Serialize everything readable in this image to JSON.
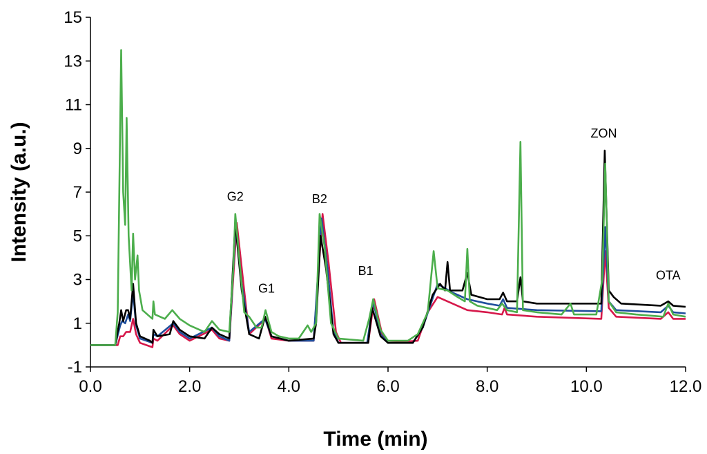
{
  "chart_data": {
    "type": "line",
    "title": "",
    "xlabel": "Time (min)",
    "ylabel": "Intensity (a.u.)",
    "xlim": [
      0,
      12
    ],
    "ylim": [
      -1,
      15
    ],
    "x_ticks": [
      "0.0",
      "2.0",
      "4.0",
      "6.0",
      "8.0",
      "10.0",
      "12.0"
    ],
    "y_ticks": [
      "-1",
      "1",
      "3",
      "5",
      "7",
      "9",
      "11",
      "13",
      "15"
    ],
    "grid": false,
    "legend": "none",
    "annotations": [
      {
        "text": "G2",
        "x": 2.92,
        "y": 6.6
      },
      {
        "text": "G1",
        "x": 3.55,
        "y": 2.4
      },
      {
        "text": "B2",
        "x": 4.62,
        "y": 6.5
      },
      {
        "text": "B1",
        "x": 5.55,
        "y": 3.2
      },
      {
        "text": "ZON",
        "x": 10.35,
        "y": 9.5
      },
      {
        "text": "OTA",
        "x": 11.65,
        "y": 3.0
      }
    ],
    "series": [
      {
        "color": "#d6184a",
        "points": [
          [
            0,
            0
          ],
          [
            0.55,
            0
          ],
          [
            0.6,
            0.4
          ],
          [
            0.66,
            0.4
          ],
          [
            0.72,
            0.6
          ],
          [
            0.8,
            0.6
          ],
          [
            0.86,
            1.2
          ],
          [
            0.92,
            0.5
          ],
          [
            1.0,
            0.1
          ],
          [
            1.25,
            -0.1
          ],
          [
            1.27,
            0.3
          ],
          [
            1.35,
            0.2
          ],
          [
            1.67,
            0.9
          ],
          [
            1.8,
            0.5
          ],
          [
            2.0,
            0.2
          ],
          [
            2.45,
            0.7
          ],
          [
            2.6,
            0.3
          ],
          [
            2.8,
            0.2
          ],
          [
            2.95,
            5.6
          ],
          [
            3.1,
            2.5
          ],
          [
            3.2,
            0.5
          ],
          [
            3.53,
            1.2
          ],
          [
            3.65,
            0.3
          ],
          [
            4.0,
            0.2
          ],
          [
            4.5,
            0.2
          ],
          [
            4.68,
            6.0
          ],
          [
            4.8,
            3.8
          ],
          [
            4.95,
            0.6
          ],
          [
            5.05,
            0.1
          ],
          [
            5.6,
            0.1
          ],
          [
            5.72,
            2.1
          ],
          [
            5.88,
            0.5
          ],
          [
            6.0,
            0.1
          ],
          [
            6.6,
            0.2
          ],
          [
            6.8,
            1.5
          ],
          [
            7.0,
            2.2
          ],
          [
            7.3,
            1.9
          ],
          [
            7.6,
            1.6
          ],
          [
            8.0,
            1.5
          ],
          [
            8.3,
            1.4
          ],
          [
            8.35,
            1.7
          ],
          [
            8.4,
            1.4
          ],
          [
            9.0,
            1.3
          ],
          [
            10.3,
            1.2
          ],
          [
            10.38,
            4.3
          ],
          [
            10.45,
            1.7
          ],
          [
            10.6,
            1.3
          ],
          [
            11.5,
            1.2
          ],
          [
            11.65,
            1.5
          ],
          [
            11.75,
            1.2
          ],
          [
            12.0,
            1.2
          ]
        ]
      },
      {
        "color": "#1f4e9c",
        "points": [
          [
            0,
            0
          ],
          [
            0.5,
            0
          ],
          [
            0.6,
            0.9
          ],
          [
            0.64,
            1.1
          ],
          [
            0.7,
            1.0
          ],
          [
            0.76,
            1.4
          ],
          [
            0.8,
            1.1
          ],
          [
            0.86,
            2.4
          ],
          [
            0.92,
            0.9
          ],
          [
            1.0,
            0.3
          ],
          [
            1.25,
            0.1
          ],
          [
            1.27,
            0.5
          ],
          [
            1.35,
            0.4
          ],
          [
            1.67,
            1.0
          ],
          [
            1.8,
            0.6
          ],
          [
            2.0,
            0.3
          ],
          [
            2.45,
            0.8
          ],
          [
            2.6,
            0.4
          ],
          [
            2.8,
            0.2
          ],
          [
            2.93,
            5.5
          ],
          [
            3.05,
            2.8
          ],
          [
            3.2,
            0.6
          ],
          [
            3.52,
            1.2
          ],
          [
            3.65,
            0.4
          ],
          [
            4.0,
            0.2
          ],
          [
            4.5,
            0.2
          ],
          [
            4.66,
            5.8
          ],
          [
            4.78,
            3.5
          ],
          [
            4.9,
            0.6
          ],
          [
            5.0,
            0.1
          ],
          [
            5.58,
            0.1
          ],
          [
            5.7,
            2.0
          ],
          [
            5.85,
            0.5
          ],
          [
            6.0,
            0.1
          ],
          [
            6.5,
            0.1
          ],
          [
            6.7,
            0.8
          ],
          [
            7.0,
            2.8
          ],
          [
            7.3,
            2.4
          ],
          [
            7.6,
            2.1
          ],
          [
            8.0,
            1.9
          ],
          [
            8.25,
            1.8
          ],
          [
            8.32,
            2.1
          ],
          [
            8.4,
            1.7
          ],
          [
            9.0,
            1.6
          ],
          [
            10.3,
            1.55
          ],
          [
            10.38,
            5.4
          ],
          [
            10.45,
            2.0
          ],
          [
            10.6,
            1.6
          ],
          [
            11.5,
            1.5
          ],
          [
            11.65,
            1.8
          ],
          [
            11.75,
            1.5
          ],
          [
            12.0,
            1.45
          ]
        ]
      },
      {
        "color": "#000000",
        "points": [
          [
            0,
            0
          ],
          [
            0.5,
            0
          ],
          [
            0.58,
            1.0
          ],
          [
            0.62,
            1.6
          ],
          [
            0.66,
            1.1
          ],
          [
            0.72,
            1.6
          ],
          [
            0.76,
            1.6
          ],
          [
            0.8,
            1.2
          ],
          [
            0.86,
            2.8
          ],
          [
            0.92,
            1.0
          ],
          [
            1.0,
            0.4
          ],
          [
            1.2,
            0.2
          ],
          [
            1.25,
            0.1
          ],
          [
            1.27,
            0.7
          ],
          [
            1.35,
            0.4
          ],
          [
            1.6,
            0.5
          ],
          [
            1.67,
            1.1
          ],
          [
            1.8,
            0.7
          ],
          [
            2.0,
            0.4
          ],
          [
            2.3,
            0.3
          ],
          [
            2.45,
            0.8
          ],
          [
            2.6,
            0.5
          ],
          [
            2.8,
            0.3
          ],
          [
            2.92,
            5.6
          ],
          [
            3.05,
            2.5
          ],
          [
            3.2,
            0.5
          ],
          [
            3.4,
            0.3
          ],
          [
            3.52,
            1.3
          ],
          [
            3.65,
            0.4
          ],
          [
            4.0,
            0.2
          ],
          [
            4.5,
            0.3
          ],
          [
            4.55,
            1.0
          ],
          [
            4.64,
            5.0
          ],
          [
            4.75,
            3.5
          ],
          [
            4.9,
            0.5
          ],
          [
            5.0,
            0.1
          ],
          [
            5.6,
            0.1
          ],
          [
            5.68,
            1.7
          ],
          [
            5.85,
            0.4
          ],
          [
            6.0,
            0.1
          ],
          [
            6.5,
            0.1
          ],
          [
            6.7,
            0.8
          ],
          [
            6.9,
            2.3
          ],
          [
            7.05,
            2.8
          ],
          [
            7.15,
            2.5
          ],
          [
            7.2,
            3.8
          ],
          [
            7.25,
            2.5
          ],
          [
            7.5,
            2.5
          ],
          [
            7.6,
            3.3
          ],
          [
            7.68,
            2.3
          ],
          [
            8.0,
            2.1
          ],
          [
            8.25,
            2.1
          ],
          [
            8.32,
            2.4
          ],
          [
            8.4,
            2.0
          ],
          [
            8.6,
            2.0
          ],
          [
            8.67,
            3.1
          ],
          [
            8.72,
            2.0
          ],
          [
            9.0,
            1.9
          ],
          [
            9.5,
            1.9
          ],
          [
            10.0,
            1.9
          ],
          [
            10.3,
            1.9
          ],
          [
            10.37,
            8.9
          ],
          [
            10.45,
            2.5
          ],
          [
            10.55,
            2.2
          ],
          [
            10.7,
            1.9
          ],
          [
            11.5,
            1.8
          ],
          [
            11.65,
            2.0
          ],
          [
            11.75,
            1.8
          ],
          [
            12.0,
            1.75
          ]
        ]
      },
      {
        "color": "#4cae4c",
        "points": [
          [
            0,
            0
          ],
          [
            0.5,
            0
          ],
          [
            0.55,
            1.5
          ],
          [
            0.62,
            13.5
          ],
          [
            0.66,
            7
          ],
          [
            0.7,
            5.5
          ],
          [
            0.73,
            10.4
          ],
          [
            0.77,
            5
          ],
          [
            0.83,
            2.5
          ],
          [
            0.86,
            5.1
          ],
          [
            0.9,
            3.0
          ],
          [
            0.95,
            4.1
          ],
          [
            0.98,
            2.5
          ],
          [
            1.05,
            1.6
          ],
          [
            1.2,
            1.3
          ],
          [
            1.25,
            1.2
          ],
          [
            1.27,
            2.0
          ],
          [
            1.3,
            1.4
          ],
          [
            1.5,
            1.2
          ],
          [
            1.65,
            1.6
          ],
          [
            1.8,
            1.2
          ],
          [
            2.0,
            0.9
          ],
          [
            2.3,
            0.6
          ],
          [
            2.45,
            1.1
          ],
          [
            2.6,
            0.7
          ],
          [
            2.8,
            0.6
          ],
          [
            2.88,
            3.5
          ],
          [
            2.92,
            6.0
          ],
          [
            3.0,
            4.0
          ],
          [
            3.1,
            1.5
          ],
          [
            3.2,
            1.3
          ],
          [
            3.35,
            0.8
          ],
          [
            3.45,
            0.8
          ],
          [
            3.53,
            1.6
          ],
          [
            3.65,
            0.6
          ],
          [
            3.8,
            0.4
          ],
          [
            4.0,
            0.3
          ],
          [
            4.2,
            0.3
          ],
          [
            4.38,
            0.9
          ],
          [
            4.45,
            0.6
          ],
          [
            4.55,
            1.0
          ],
          [
            4.62,
            6.0
          ],
          [
            4.72,
            4.5
          ],
          [
            4.85,
            1.0
          ],
          [
            5.0,
            0.3
          ],
          [
            5.5,
            0.2
          ],
          [
            5.62,
            1.2
          ],
          [
            5.7,
            2.1
          ],
          [
            5.85,
            0.7
          ],
          [
            6.0,
            0.2
          ],
          [
            6.4,
            0.2
          ],
          [
            6.6,
            0.5
          ],
          [
            6.8,
            1.5
          ],
          [
            6.92,
            4.3
          ],
          [
            7.0,
            2.6
          ],
          [
            7.2,
            2.5
          ],
          [
            7.4,
            2.2
          ],
          [
            7.55,
            2.0
          ],
          [
            7.6,
            4.4
          ],
          [
            7.65,
            2.0
          ],
          [
            7.8,
            1.8
          ],
          [
            8.0,
            1.7
          ],
          [
            8.2,
            1.6
          ],
          [
            8.3,
            1.9
          ],
          [
            8.4,
            1.6
          ],
          [
            8.6,
            1.5
          ],
          [
            8.67,
            9.3
          ],
          [
            8.72,
            1.6
          ],
          [
            9.0,
            1.5
          ],
          [
            9.5,
            1.4
          ],
          [
            9.68,
            1.9
          ],
          [
            9.75,
            1.4
          ],
          [
            10.2,
            1.4
          ],
          [
            10.32,
            3
          ],
          [
            10.38,
            8.3
          ],
          [
            10.45,
            2.0
          ],
          [
            10.6,
            1.5
          ],
          [
            11.0,
            1.4
          ],
          [
            11.55,
            1.3
          ],
          [
            11.65,
            1.9
          ],
          [
            11.75,
            1.4
          ],
          [
            12.0,
            1.3
          ]
        ]
      }
    ]
  }
}
